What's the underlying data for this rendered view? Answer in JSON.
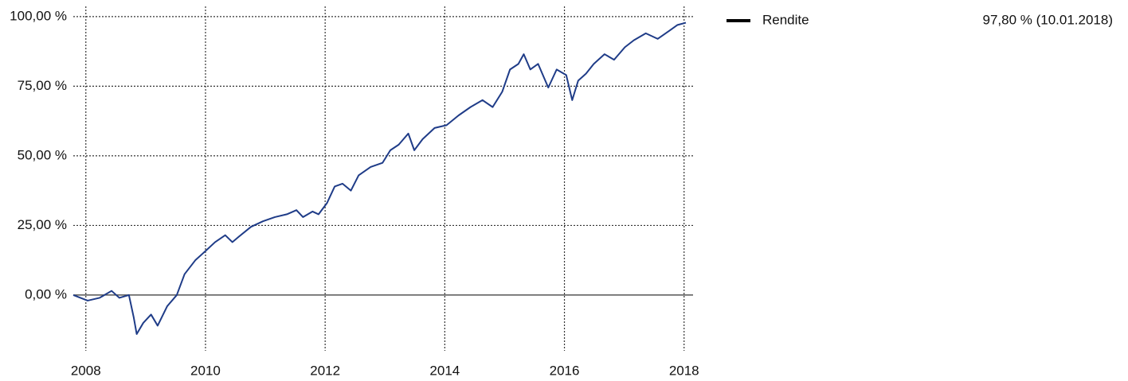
{
  "chart_data": {
    "type": "line",
    "annotation": "97,80 % (10.01.2018)",
    "x": [
      2007.79,
      2008.03,
      2008.23,
      2008.43,
      2008.56,
      2008.72,
      2008.8,
      2008.85,
      2008.96,
      2009.09,
      2009.2,
      2009.36,
      2009.52,
      2009.65,
      2009.83,
      2010.01,
      2010.16,
      2010.33,
      2010.45,
      2010.56,
      2010.76,
      2010.96,
      2011.16,
      2011.36,
      2011.52,
      2011.63,
      2011.79,
      2011.89,
      2012.03,
      2012.16,
      2012.29,
      2012.43,
      2012.56,
      2012.76,
      2012.96,
      2013.09,
      2013.23,
      2013.39,
      2013.49,
      2013.63,
      2013.83,
      2014.03,
      2014.23,
      2014.43,
      2014.63,
      2014.8,
      2014.96,
      2015.09,
      2015.23,
      2015.32,
      2015.43,
      2015.56,
      2015.73,
      2015.87,
      2016.03,
      2016.13,
      2016.23,
      2016.36,
      2016.49,
      2016.67,
      2016.83,
      2017.01,
      2017.16,
      2017.36,
      2017.56,
      2017.76,
      2017.89,
      2018.03
    ],
    "series": [
      {
        "name": "Rendite",
        "color": "#1f3c88",
        "values": [
          0,
          -2,
          -1,
          1.5,
          -1,
          0,
          -8,
          -14,
          -10,
          -7,
          -11,
          -4,
          0,
          7.5,
          12.5,
          16,
          19,
          21.5,
          19,
          21,
          24.5,
          26.5,
          28,
          29,
          30.5,
          28,
          30,
          29,
          33,
          39,
          40,
          37.5,
          43,
          46,
          47.5,
          52,
          54,
          58,
          52,
          56,
          60,
          61,
          64.5,
          67.5,
          70,
          67.5,
          73,
          81,
          83,
          86.5,
          81,
          83,
          74.5,
          81,
          79,
          70,
          77,
          79.5,
          83,
          86.5,
          84.5,
          89,
          91.5,
          94,
          92,
          95,
          97,
          97.8
        ]
      }
    ],
    "xlim": [
      2007.79,
      2018.15
    ],
    "xticks": [
      2008,
      2010,
      2012,
      2014,
      2016,
      2018
    ],
    "ylim": [
      -18.3,
      103.1
    ],
    "yticks": [
      {
        "value": 0,
        "label": "0,00 %"
      },
      {
        "value": 25,
        "label": "25,00 %"
      },
      {
        "value": 50,
        "label": "50,00 %"
      },
      {
        "value": 75,
        "label": "75,00 %"
      },
      {
        "value": 100,
        "label": "100,00 %"
      }
    ],
    "grid": true
  }
}
